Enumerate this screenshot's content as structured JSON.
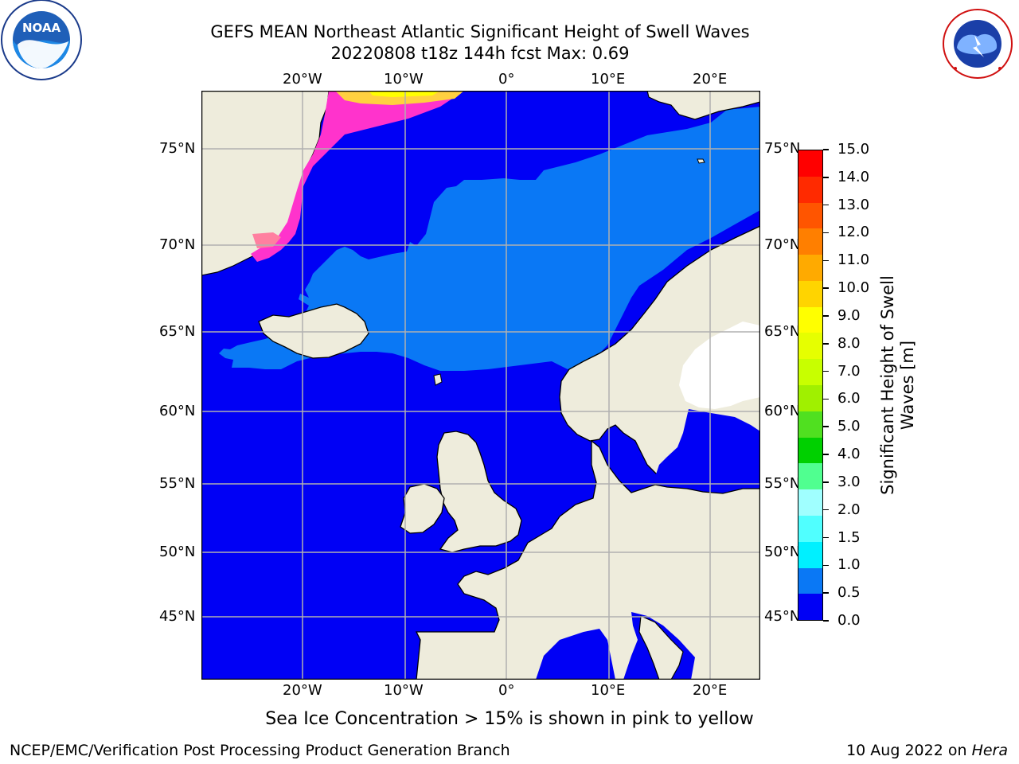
{
  "header": {
    "title": "GEFS MEAN Northeast Atlantic Significant Height of Swell Waves",
    "subtitle": "20220808 t18z 144h fcst   Max: 0.69"
  },
  "map": {
    "lon_labels": [
      "20°W",
      "10°W",
      "0°",
      "10°E",
      "20°E"
    ],
    "lat_labels": [
      "75°N",
      "70°N",
      "65°N",
      "60°N",
      "55°N",
      "50°N",
      "45°N"
    ],
    "colors": {
      "ocean": "#0000f5",
      "swell_0_5_1_0": "#0a78f5",
      "land": "#eeecdc",
      "ice_low": "#ff33cc",
      "ice_mid": "#ff80a0",
      "ice_high": "#ffd040",
      "ice_max": "#ffff00",
      "grid": "#b0b0b0"
    }
  },
  "colorbar": {
    "label": "Significant Height of Swell Waves [m]",
    "ticks": [
      "15.0",
      "14.0",
      "13.0",
      "12.0",
      "11.0",
      "10.0",
      "9.0",
      "8.0",
      "7.0",
      "6.0",
      "5.0",
      "4.0",
      "3.0",
      "2.0",
      "1.5",
      "1.0",
      "0.5",
      "0.0"
    ],
    "bands": [
      "#ff0000",
      "#ff2a00",
      "#ff5500",
      "#ff7f00",
      "#ffaa00",
      "#ffd400",
      "#ffff00",
      "#e6ff00",
      "#c8ff00",
      "#a0f000",
      "#50e020",
      "#00d000",
      "#50ff90",
      "#a0ffff",
      "#50ffff",
      "#00f0ff",
      "#0a78f5",
      "#0000f5"
    ]
  },
  "annotation": "Sea Ice Concentration > 15% is shown in pink to yellow",
  "footer": {
    "left": "NCEP/EMC/Verification Post Processing Product Generation Branch",
    "right_date": "10 Aug 2022 on",
    "right_machine": "Hera"
  },
  "logos": {
    "noaa_text": "NOAA",
    "noaa_ring": "NATIONAL OCEANIC AND ATMOSPHERIC ADMINISTRATION · U.S. DEPARTMENT OF COMMERCE",
    "nws_ring": "NATIONAL WEATHER SERVICE"
  }
}
